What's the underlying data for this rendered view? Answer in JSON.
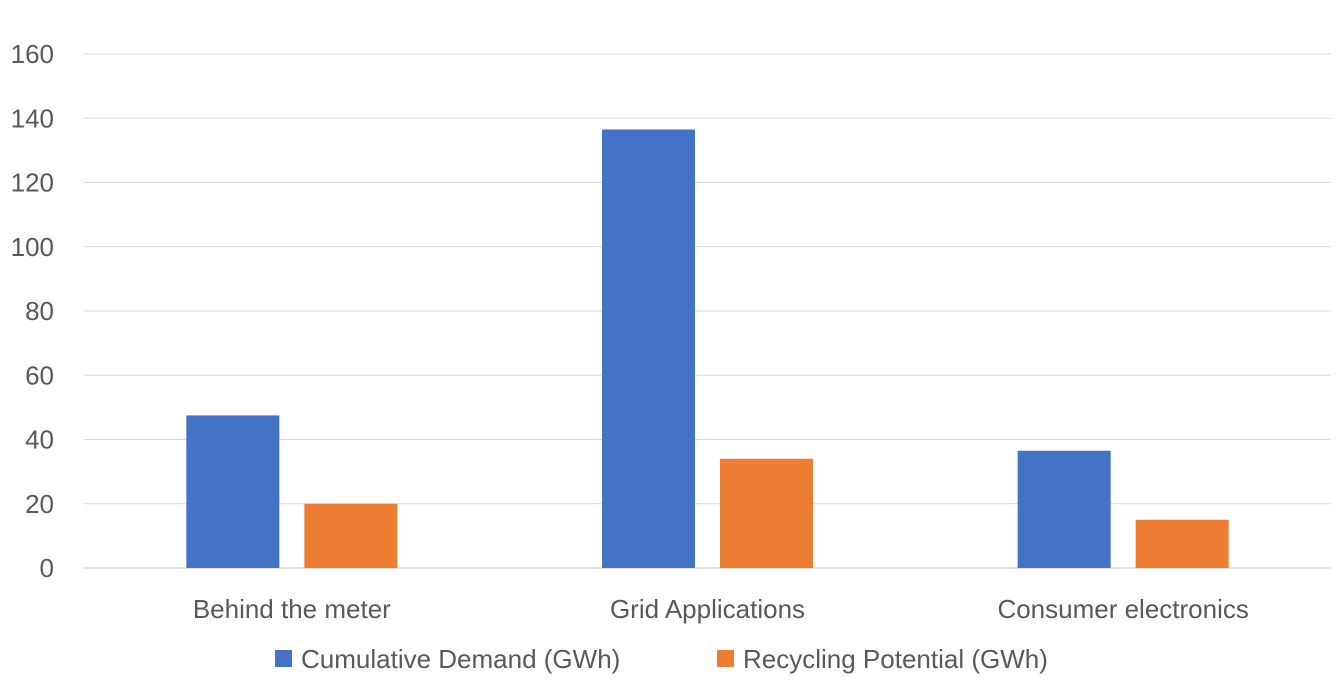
{
  "chart_data": {
    "type": "bar",
    "title": "",
    "xlabel": "",
    "ylabel": "",
    "categories": [
      "Behind the meter",
      "Grid Applications",
      "Consumer electronics"
    ],
    "series": [
      {
        "name": "Cumulative Demand (GWh)",
        "values": [
          47.5,
          136.5,
          36.5
        ],
        "color": "#4472c4"
      },
      {
        "name": "Recycling Potential (GWh)",
        "values": [
          20,
          34,
          15
        ],
        "color": "#ed7d31"
      }
    ],
    "ylim": [
      0,
      160
    ],
    "yticks": [
      0,
      20,
      40,
      60,
      80,
      100,
      120,
      140,
      160
    ],
    "grid": true,
    "legend_position": "bottom"
  }
}
